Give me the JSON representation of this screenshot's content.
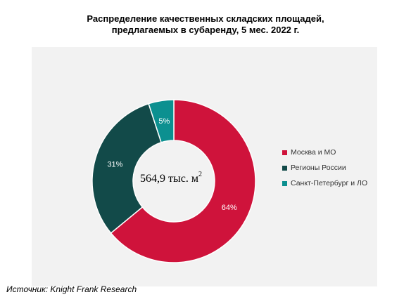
{
  "title": {
    "line1": "Распределение качественных складских площадей,",
    "line2": "предлагаемых в субаренду, 5 мес. 2022 г."
  },
  "center_label": {
    "value": "564,9 тыс.  м",
    "sup": "2"
  },
  "source": "Источник: Knight Frank Research",
  "chart_data": {
    "type": "pie",
    "style": "donut",
    "start_angle_deg": 0,
    "direction": "clockwise",
    "categories": [
      "Москва и МО",
      "Регионы России",
      "Санкт-Петербург и ЛО"
    ],
    "values": [
      64,
      31,
      5
    ],
    "labels": [
      "64%",
      "31%",
      "5%"
    ],
    "colors": [
      "#cf133b",
      "#124a49",
      "#0c9090"
    ],
    "legend_position": "right"
  }
}
